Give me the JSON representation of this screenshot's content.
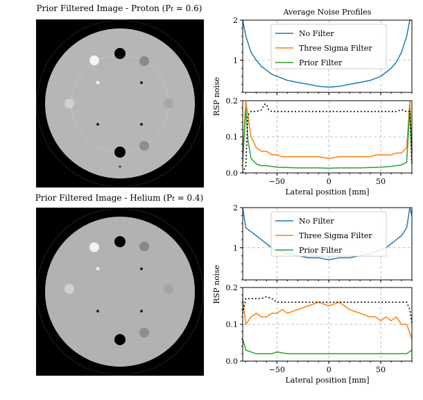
{
  "left_panels": [
    {
      "title": "Prior Filtered Image - Proton (P",
      "sub": "t",
      "title_end": " = 0.6)"
    },
    {
      "title": "Prior Filtered Image - Helium (P",
      "sub": "t",
      "title_end": " = 0.4)"
    }
  ],
  "chart_data": [
    {
      "type": "line",
      "title": "Average Noise Profiles",
      "xlabel": "",
      "ylabel": "",
      "xlim": [
        -83,
        80
      ],
      "ylim": [
        0.2,
        2
      ],
      "yticks": [
        "1",
        "2"
      ],
      "grid": true,
      "legend": {
        "placement": "top-center",
        "entries": [
          "No Filter",
          "Three Sigma Filter",
          "Prior Filter"
        ]
      },
      "series": [
        {
          "name": "No Filter",
          "color": "#1f77b4",
          "x": [
            -83,
            -80,
            -75,
            -70,
            -65,
            -60,
            -55,
            -50,
            -45,
            -40,
            -30,
            -20,
            -10,
            0,
            10,
            20,
            30,
            40,
            45,
            50,
            55,
            60,
            65,
            70,
            75,
            78,
            80
          ],
          "values": [
            2.0,
            1.6,
            1.2,
            1.0,
            0.85,
            0.75,
            0.65,
            0.6,
            0.55,
            0.5,
            0.45,
            0.4,
            0.35,
            0.33,
            0.35,
            0.4,
            0.45,
            0.5,
            0.55,
            0.6,
            0.7,
            0.8,
            0.95,
            1.2,
            1.6,
            2.0,
            2.0
          ]
        }
      ]
    },
    {
      "type": "line",
      "title": "",
      "xlabel": "Lateral position [mm]",
      "ylabel": "RSP noise",
      "xlim": [
        -83,
        80
      ],
      "ylim": [
        0,
        0.2
      ],
      "xticks": [
        "−50",
        "0",
        "50"
      ],
      "yticks": [
        "0.0",
        "0.1",
        "0.2"
      ],
      "grid": true,
      "series": [
        {
          "name": "Three Sigma Filter",
          "color": "#ff7f0e",
          "x": [
            -83,
            -80,
            -78,
            -75,
            -70,
            -65,
            -60,
            -55,
            -50,
            -45,
            -40,
            -30,
            -20,
            -10,
            0,
            10,
            20,
            30,
            40,
            45,
            50,
            55,
            60,
            65,
            70,
            75,
            78,
            80
          ],
          "values": [
            0.05,
            0.2,
            0.16,
            0.1,
            0.07,
            0.06,
            0.06,
            0.05,
            0.05,
            0.045,
            0.045,
            0.045,
            0.045,
            0.045,
            0.04,
            0.045,
            0.045,
            0.045,
            0.045,
            0.05,
            0.05,
            0.05,
            0.05,
            0.055,
            0.055,
            0.07,
            0.2,
            0.06
          ]
        },
        {
          "name": "Prior Filter",
          "color": "#2ca02c",
          "x": [
            -83,
            -80,
            -78,
            -75,
            -70,
            -65,
            -60,
            -55,
            -50,
            -40,
            -30,
            -20,
            -10,
            0,
            10,
            20,
            30,
            40,
            50,
            60,
            65,
            70,
            75,
            78,
            80
          ],
          "values": [
            0.03,
            0.18,
            0.09,
            0.04,
            0.025,
            0.02,
            0.02,
            0.018,
            0.016,
            0.015,
            0.014,
            0.014,
            0.014,
            0.013,
            0.014,
            0.014,
            0.014,
            0.015,
            0.016,
            0.018,
            0.02,
            0.022,
            0.03,
            0.18,
            0.03
          ]
        },
        {
          "name": "",
          "color": "#000000",
          "dashed": true,
          "x": [
            -83,
            -80,
            -78,
            -75,
            -70,
            -65,
            -62,
            -60,
            -58,
            -55,
            -50,
            -40,
            -30,
            -20,
            -10,
            0,
            10,
            20,
            30,
            40,
            50,
            55,
            60,
            65,
            70,
            75,
            78,
            80
          ],
          "values": [
            0.0,
            0.02,
            0.16,
            0.17,
            0.17,
            0.175,
            0.19,
            0.19,
            0.175,
            0.17,
            0.17,
            0.17,
            0.17,
            0.17,
            0.17,
            0.17,
            0.17,
            0.17,
            0.17,
            0.17,
            0.17,
            0.17,
            0.17,
            0.17,
            0.175,
            0.17,
            0.17,
            0.02
          ]
        }
      ]
    },
    {
      "type": "line",
      "title": "",
      "xlabel": "",
      "ylabel": "",
      "xlim": [
        -83,
        80
      ],
      "ylim": [
        0.2,
        2
      ],
      "yticks": [
        "1",
        "2"
      ],
      "grid": true,
      "legend": {
        "placement": "top-center",
        "entries": [
          "No Filter",
          "Three Sigma Filter",
          "Prior Filter"
        ]
      },
      "series": [
        {
          "name": "No Filter",
          "color": "#1f77b4",
          "x": [
            -83,
            -80,
            -75,
            -70,
            -65,
            -60,
            -55,
            -50,
            -45,
            -40,
            -30,
            -20,
            -10,
            0,
            10,
            20,
            30,
            40,
            45,
            50,
            55,
            60,
            65,
            70,
            75,
            78,
            80
          ],
          "values": [
            2.0,
            1.5,
            1.4,
            1.3,
            1.2,
            1.1,
            1.0,
            0.95,
            0.9,
            0.85,
            0.8,
            0.75,
            0.75,
            0.7,
            0.75,
            0.75,
            0.8,
            0.85,
            0.9,
            0.95,
            1.0,
            1.1,
            1.2,
            1.3,
            1.5,
            2.0,
            1.8
          ]
        }
      ]
    },
    {
      "type": "line",
      "title": "",
      "xlabel": "Lateral position [mm]",
      "ylabel": "RSP noise",
      "xlim": [
        -83,
        80
      ],
      "ylim": [
        0,
        0.2
      ],
      "xticks": [
        "−50",
        "0",
        "50"
      ],
      "yticks": [
        "0.0",
        "0.1",
        "0.2"
      ],
      "grid": true,
      "series": [
        {
          "name": "Three Sigma Filter",
          "color": "#ff7f0e",
          "x": [
            -83,
            -80,
            -75,
            -70,
            -65,
            -60,
            -55,
            -50,
            -45,
            -40,
            -30,
            -20,
            -10,
            0,
            10,
            20,
            30,
            40,
            45,
            50,
            55,
            60,
            65,
            70,
            75,
            80
          ],
          "values": [
            0.17,
            0.1,
            0.12,
            0.13,
            0.12,
            0.12,
            0.13,
            0.13,
            0.14,
            0.13,
            0.14,
            0.15,
            0.16,
            0.15,
            0.16,
            0.14,
            0.13,
            0.12,
            0.12,
            0.11,
            0.12,
            0.11,
            0.12,
            0.1,
            0.1,
            0.06
          ]
        },
        {
          "name": "Prior Filter",
          "color": "#2ca02c",
          "x": [
            -83,
            -80,
            -75,
            -70,
            -65,
            -60,
            -55,
            -50,
            -40,
            -30,
            -20,
            -10,
            0,
            10,
            20,
            30,
            40,
            50,
            60,
            70,
            75,
            80
          ],
          "values": [
            0.06,
            0.03,
            0.025,
            0.02,
            0.02,
            0.02,
            0.02,
            0.025,
            0.02,
            0.02,
            0.02,
            0.02,
            0.02,
            0.02,
            0.02,
            0.02,
            0.02,
            0.02,
            0.02,
            0.02,
            0.02,
            0.03
          ]
        },
        {
          "name": "",
          "color": "#000000",
          "dashed": true,
          "x": [
            -83,
            -80,
            -75,
            -70,
            -65,
            -60,
            -55,
            -50,
            -45,
            -40,
            -30,
            -20,
            -10,
            0,
            10,
            20,
            30,
            40,
            50,
            55,
            60,
            65,
            70,
            75,
            78,
            80
          ],
          "values": [
            0.13,
            0.17,
            0.17,
            0.17,
            0.17,
            0.175,
            0.17,
            0.16,
            0.16,
            0.16,
            0.16,
            0.16,
            0.16,
            0.16,
            0.16,
            0.16,
            0.16,
            0.16,
            0.16,
            0.16,
            0.16,
            0.16,
            0.16,
            0.16,
            0.14,
            0.1
          ]
        }
      ]
    }
  ]
}
